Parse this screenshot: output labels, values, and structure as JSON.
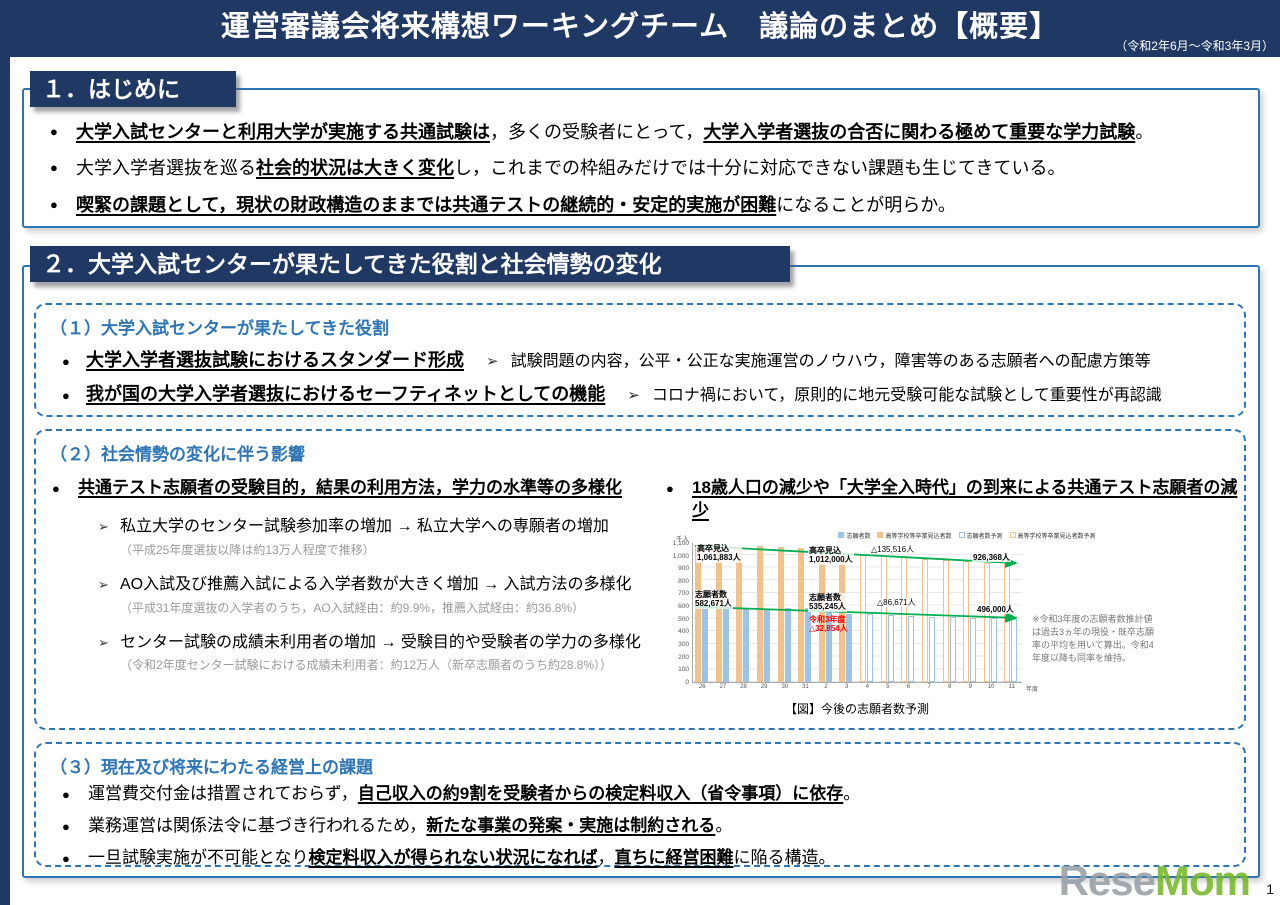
{
  "glyphs": {
    "bullet": "●",
    "arrow": "➢"
  },
  "header": {
    "title": "運営審議会将来構想ワーキングチーム　議論のまとめ【概要】",
    "period": "（令和2年6月～令和3年3月）"
  },
  "section1": {
    "heading": "１．はじめに",
    "bullets": {
      "b1": {
        "s1": "大学入試センターと利用大学が実施する共通試験は",
        "t1": "，多くの受験者にとって，",
        "s2": "大学入学者選抜の合否に関わる極めて重要な学力試験",
        "t2": "。"
      },
      "b2": {
        "t1": "大学入学者選抜を巡る",
        "s1": "社会的状況は大きく変化",
        "t2": "し，これまでの枠組みだけでは十分に対応できない課題も生じてきている。"
      },
      "b3": {
        "s1": "喫緊の課題として，現状の財政構造のままでは共通テストの継続的・安定的実施が困難",
        "t1": "になることが明らか。"
      }
    }
  },
  "section2": {
    "heading": "２．大学入試センターが果たしてきた役割と社会情勢の変化",
    "box1": {
      "heading": "（１）大学入試センターが果たしてきた役割",
      "items": [
        {
          "title": "大学入学者選抜試験におけるスタンダード形成",
          "desc": "試験問題の内容，公平・公正な実施運営のノウハウ，障害等のある志願者への配慮方策等"
        },
        {
          "title": "我が国の大学入学者選抜におけるセーフティネットとしての機能",
          "desc": "コロナ禍において，原則的に地元受験可能な試験として重要性が再認識"
        }
      ]
    },
    "box2": {
      "heading": "（２）社会情勢の変化に伴う影響",
      "left": {
        "bullet": "共通テスト志願者の受験目的，結果の利用方法，学力の水準等の多様化",
        "subitems": [
          {
            "text": "私立大学のセンター試験参加率の増加 → 私立大学への専願者の増加",
            "note": "（平成25年度選抜以降は約13万人程度で推移）"
          },
          {
            "text": "AO入試及び推薦入試による入学者数が大きく増加 → 入試方法の多様化",
            "note": "（平成31年度選抜の入学者のうち，AO入試経由：約9.9%，推薦入試経由：約36.8%）"
          },
          {
            "text": "センター試験の成績未利用者の増加 → 受験目的や受験者の学力の多様化",
            "note": "（令和2年度センター試験における成績未利用者：約12万人（新卒志願者のうち約28.8%））"
          }
        ]
      },
      "right": {
        "bullet": "18歳人口の減少や「大学全入時代」の到来による共通テスト志願者の減少"
      }
    },
    "box3": {
      "heading": "（３）現在及び将来にわたる経営上の課題",
      "bullets": {
        "b1": {
          "t1": "運営費交付金は措置されておらず，",
          "s1": "自己収入の約9割を受験者からの検定料収入（省令事項）に依存",
          "t2": "。"
        },
        "b2": {
          "t1": "業務運営は関係法令に基づき行われるため，",
          "s1": "新たな事業の発案・実施は制約される",
          "t2": "。"
        },
        "b3": {
          "t1": "一旦試験実施が不可能となり",
          "s1": "検定料収入が得られない状況になれば",
          "t2": "，",
          "s2": "直ちに経営困難",
          "t3": "に陥る構造。"
        }
      }
    }
  },
  "chart_data": {
    "type": "bar",
    "title": "【図】今後の志願者数予測",
    "caption": "【図】今後の志願者数予測",
    "unit_label": "千人",
    "ylim": [
      0,
      1100
    ],
    "ytick_step": 100,
    "grid": true,
    "legend_position": "top",
    "xlabel_suffix": "年度",
    "categories": [
      "26",
      "27",
      "28",
      "29",
      "30",
      "31",
      "2",
      "3",
      "4",
      "5",
      "6",
      "7",
      "8",
      "9",
      "10",
      "11"
    ],
    "actual_count": 8,
    "series": [
      {
        "name": "高等学校等卒業見込者数",
        "color": "#F2C18C",
        "values": [
          1062,
          1064,
          1061,
          1069,
          1056,
          1051,
          1037,
          1012,
          1000,
          990,
          979,
          968,
          957,
          946,
          936,
          926
        ]
      },
      {
        "name": "志願者数",
        "color": "#9DC3E6",
        "values": [
          583,
          580,
          575,
          576,
          582,
          577,
          558,
          535,
          530,
          524,
          519,
          513,
          508,
          503,
          499,
          496
        ]
      }
    ],
    "legend": [
      "志願者数",
      "高等学校等卒業見込者数",
      "志願者数予測",
      "高等学校等卒業見込者数予測"
    ],
    "trend_line_color": "#00B050",
    "annotations": {
      "kosotsu_start_label": "高卒見込",
      "kosotsu_start_value": "1,061,883人",
      "kosotsu_mid_label": "高卒見込",
      "kosotsu_mid_value": "1,012,000人",
      "decline_top": "△135,516人",
      "end_top": "926,368人",
      "shigan_start_label": "志願者数",
      "shigan_start_value": "582,671人",
      "shigan_mid_label": "志願者数",
      "shigan_mid_value": "535,245人",
      "reiwa3_line1": "令和3年度",
      "reiwa3_line2": "△32,854人",
      "decline_bottom": "△86,671人",
      "end_bottom": "496,000人"
    },
    "side_note": "※令和3年度の志願者数推計値は過去3ヵ年の現役・既卒志願率の平均を用いて算出。令和4年度以降も同率を維持。"
  },
  "footer": {
    "watermark_gray": "Rese",
    "watermark_green": "Mom",
    "page_number": "1"
  }
}
